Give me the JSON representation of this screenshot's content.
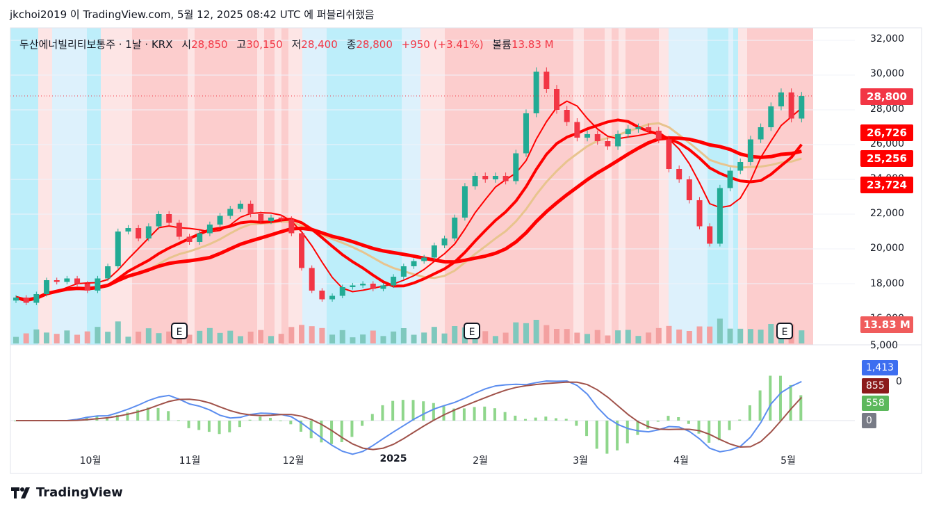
{
  "header": {
    "publish_line": "jkchoi2019 이 TradingView.com, 5월 12, 2025 08:42 UTC 에 퍼블리쉬했음"
  },
  "legend": {
    "symbol": "두산에너빌리티보통주 · 1날 · KRX",
    "open_label": "시",
    "open": "28,850",
    "high_label": "고",
    "high": "30,150",
    "low_label": "저",
    "low": "28,400",
    "close_label": "종",
    "close": "28,800",
    "change": "+950 (+3.41%)",
    "volume_label": "볼륨",
    "volume": "13.83 M"
  },
  "price_axis": {
    "ticks": [
      "32,000",
      "30,000",
      "28,000",
      "26,000",
      "24,000",
      "22,000",
      "20,000",
      "18,000",
      "16,000",
      "5,000"
    ]
  },
  "badges": {
    "last": "28,800",
    "ma1": "26,726",
    "ma2": "25,256",
    "ma3": "23,724",
    "volume": "13.83 M"
  },
  "macd_badges": {
    "macd": "1,413",
    "signal": "855",
    "hist": "558",
    "zero": "0",
    "axis_tail": "0"
  },
  "time_axis": {
    "labels": [
      "10월",
      "11월",
      "12월",
      "2025",
      "2월",
      "3월",
      "4월",
      "5월"
    ]
  },
  "earnings_marker": "E",
  "footer": {
    "brand": "TradingView"
  },
  "colors": {
    "up": "#22ab94",
    "down": "#f23645",
    "ma_red": "#ff0000",
    "ma_tan": "#e8c48e",
    "ma_purple": "#8f7cf0",
    "macd_blue": "#5b8def",
    "macd_signal": "#a0524a",
    "hist": "#8fd68b",
    "bg_red": "#fcc4c4",
    "bg_pink": "#fde0e0",
    "bg_blue": "#b2ebf9",
    "bg_lightblue": "#d7effb"
  },
  "chart_data": {
    "type": "candlestick",
    "symbol": "두산에너빌리티보통주",
    "interval": "1날",
    "exchange": "KRX",
    "y_range": [
      16000,
      32000
    ],
    "last_close": 28800,
    "closes_approx": [
      17200,
      16900,
      17400,
      18200,
      18100,
      18300,
      18000,
      17600,
      18300,
      19000,
      21000,
      21200,
      20600,
      21300,
      22000,
      21500,
      20700,
      20400,
      20900,
      21400,
      21900,
      22300,
      22600,
      22000,
      21600,
      21800,
      21700,
      20900,
      18900,
      17600,
      17100,
      17300,
      17800,
      17900,
      18000,
      17700,
      17900,
      18400,
      19000,
      19300,
      19500,
      20200,
      20600,
      21800,
      23600,
      24200,
      24000,
      24200,
      23900,
      25500,
      27800,
      30200,
      29200,
      28000,
      27300,
      26400,
      26600,
      26200,
      25900,
      26600,
      26900,
      27000,
      26800,
      26300,
      24600,
      24000,
      22800,
      21300,
      20300,
      23500,
      24500,
      25000,
      26300,
      27000,
      28200,
      29000,
      27500,
      28800
    ],
    "volume_last": "13.83M",
    "macd_last": 1413,
    "signal_last": 855,
    "hist_last": 558
  }
}
